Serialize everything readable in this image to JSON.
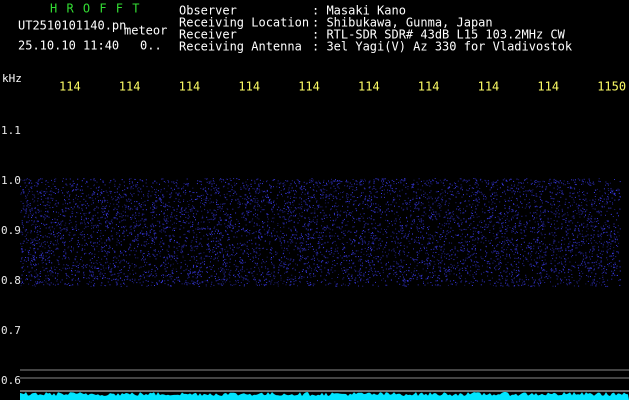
{
  "app": {
    "title": "H R O F F T",
    "file": "UT2510101140.pn",
    "event": "meteor",
    "datetime": "25.10.10 11:40",
    "count": "0.."
  },
  "info": {
    "rows": [
      [
        "Observer",
        ": Masaki Kano"
      ],
      [
        "Receiving Location",
        ": Shibukawa, Gunma, Japan"
      ],
      [
        "Receiver",
        ": RTL-SDR SDR# 43dB L15 103.2MHz CW"
      ],
      [
        "Receiving Antenna",
        ": 3el Yagi(V) Az 330 for Vladivostok"
      ]
    ]
  },
  "axis": {
    "unit": "kHz",
    "top_labels": [
      "114",
      "114",
      "114",
      "114",
      "114",
      "114",
      "114",
      "114",
      "114",
      "1150"
    ],
    "left_labels": [
      "1.1",
      "1.0",
      "0.9",
      "0.8",
      "0.7",
      "0.6"
    ]
  }
}
